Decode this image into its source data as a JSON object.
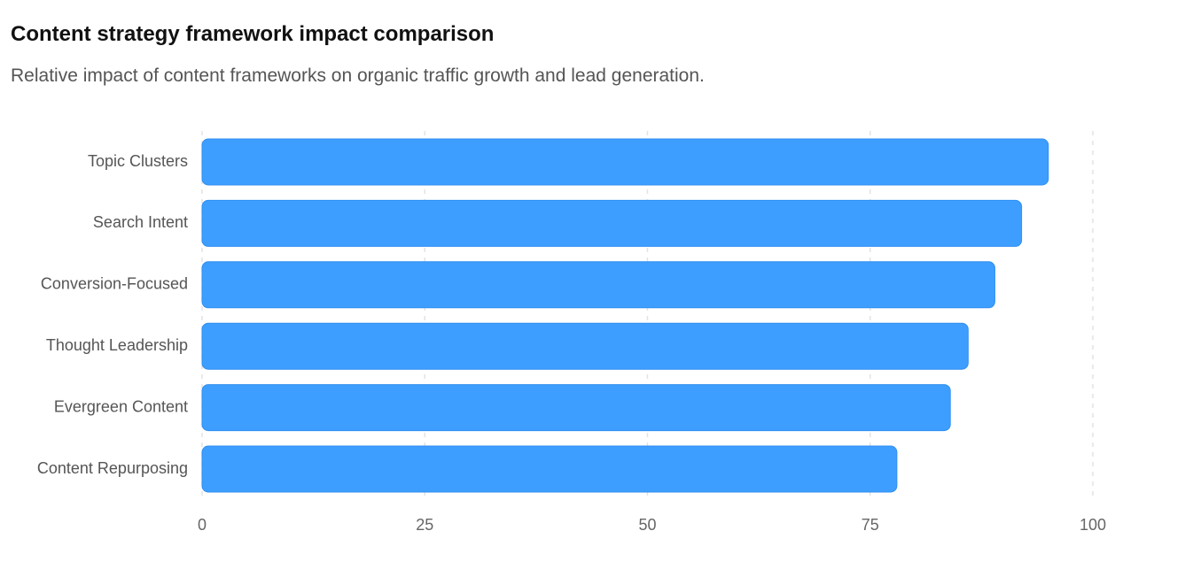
{
  "chart_data": {
    "type": "bar",
    "orientation": "horizontal",
    "title": "Content strategy framework impact comparison",
    "subtitle": "Relative impact of content frameworks on organic traffic growth and lead generation.",
    "categories": [
      "Topic Clusters",
      "Search Intent",
      "Conversion-Focused",
      "Thought Leadership",
      "Evergreen Content",
      "Content Repurposing"
    ],
    "values": [
      95,
      92,
      89,
      86,
      84,
      78
    ],
    "xlim": [
      0,
      100
    ],
    "xticks": [
      0,
      25,
      50,
      75,
      100
    ],
    "grid": true,
    "bar_color": "#3d9eff"
  }
}
